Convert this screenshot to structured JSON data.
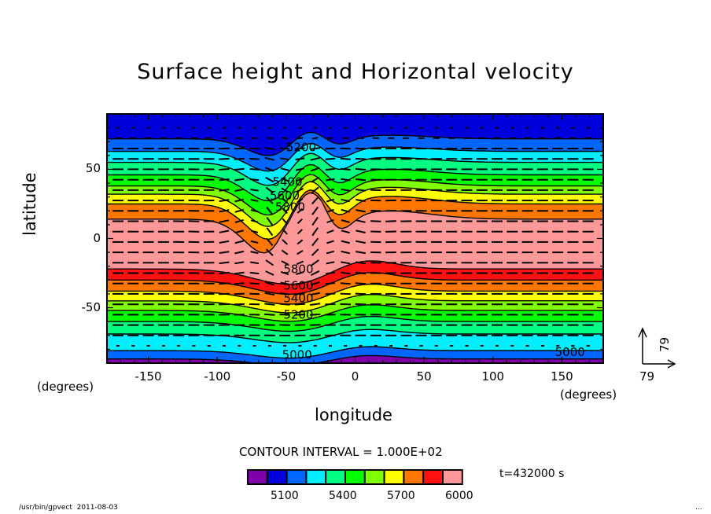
{
  "chart_data": {
    "type": "heatmap",
    "subtype": "filled contour with vector overlay",
    "title": "Surface height and Horizontal velocity",
    "xlabel": "longitude",
    "ylabel": "latitude",
    "x_unit_label": "(degrees)",
    "y_unit_label": "(degrees)",
    "xlim": [
      -180,
      180
    ],
    "ylim": [
      -90,
      90
    ],
    "x_ticks": [
      -150,
      -100,
      -50,
      0,
      50,
      100,
      150
    ],
    "y_ticks": [
      -50,
      0,
      50
    ],
    "contour_interval_label": "CONTOUR INTERVAL = 1.000E+02",
    "contour_interval": 100,
    "contour_levels": [
      5000,
      5100,
      5200,
      5300,
      5400,
      5500,
      5600,
      5700,
      5800,
      5900
    ],
    "contour_line_labels": [
      {
        "value": "5200",
        "lon": -50,
        "lat": 63
      },
      {
        "value": "5400",
        "lon": -60,
        "lat": 38
      },
      {
        "value": "5600",
        "lon": -62,
        "lat": 28
      },
      {
        "value": "5800",
        "lon": -58,
        "lat": 20
      },
      {
        "value": "5800",
        "lon": -52,
        "lat": -25
      },
      {
        "value": "5600",
        "lon": -52,
        "lat": -37
      },
      {
        "value": "5400",
        "lon": -52,
        "lat": -46
      },
      {
        "value": "5200",
        "lon": -52,
        "lat": -58
      },
      {
        "value": "5000",
        "lon": -53,
        "lat": -87
      },
      {
        "value": "5000",
        "lon": 145,
        "lat": -85
      }
    ],
    "band_boundaries_far_field_lat": {
      "north": [
        90,
        72,
        63,
        55,
        46,
        38,
        32,
        25,
        14
      ],
      "south": [
        -87,
        -81,
        -69,
        -60,
        -52,
        -45,
        -38,
        -30,
        -22
      ]
    },
    "perturbation": {
      "center_lon": -45,
      "description": "ridge/trough disturbance between lon -100 and 0"
    },
    "colorbar": {
      "colors": [
        "#7f00aa",
        "#0000dd",
        "#0066ff",
        "#00eeff",
        "#00ff80",
        "#00ff00",
        "#80ff00",
        "#ffff00",
        "#ff7700",
        "#ff1111",
        "#ff9999"
      ],
      "tick_labels": [
        "5100",
        "5400",
        "5700",
        "6000"
      ]
    },
    "vector_reference": {
      "x_label": "79",
      "y_label": "79"
    },
    "time_label": "t=432000 s"
  },
  "footer": {
    "program": "/usr/bin/gpvect",
    "date": "2011-08-03",
    "trailing": "..."
  }
}
